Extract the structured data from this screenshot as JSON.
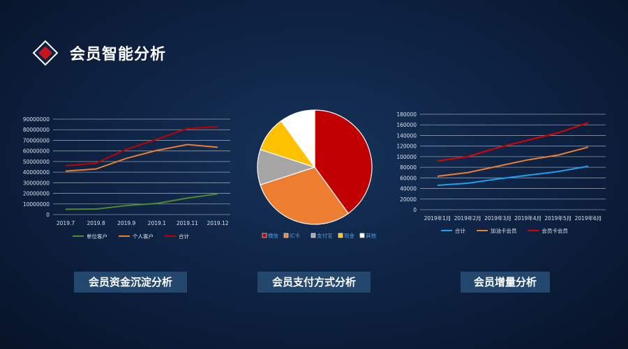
{
  "page": {
    "title": "会员智能分析"
  },
  "captions": {
    "left": "会员资金沉淀分析",
    "middle": "会员支付方式分析",
    "right": "会员增量分析"
  },
  "chart_data": [
    {
      "type": "line",
      "x": [
        "2019.7",
        "2019.8",
        "2019.9",
        "2019.1",
        "2019.11",
        "2019.12"
      ],
      "ylim": [
        0,
        90000000
      ],
      "yticks": [
        "0",
        "10000000",
        "20000000",
        "30000000",
        "40000000",
        "50000000",
        "60000000",
        "70000000",
        "80000000",
        "90000000"
      ],
      "grid": true,
      "legend_position": "bottom",
      "series": [
        {
          "name": "单位客户",
          "color": "#4e8a2e",
          "values": [
            5000000,
            5200000,
            8500000,
            10500000,
            15500000,
            19500000
          ]
        },
        {
          "name": "个人客户",
          "color": "#ed7d31",
          "values": [
            41000000,
            43000000,
            53000000,
            60500000,
            66000000,
            63500000
          ]
        },
        {
          "name": "合计",
          "color": "#c00000",
          "values": [
            46000000,
            48500000,
            61500000,
            71000000,
            81000000,
            83000000
          ]
        }
      ]
    },
    {
      "type": "pie",
      "legend_position": "bottom",
      "slices": [
        {
          "name": "微信",
          "value": 40,
          "color": "#c00000"
        },
        {
          "name": "IC卡",
          "value": 30,
          "color": "#ed7d31"
        },
        {
          "name": "支付宝",
          "value": 10,
          "color": "#a5a5a5"
        },
        {
          "name": "现金",
          "value": 10,
          "color": "#ffc000"
        },
        {
          "name": "其他",
          "value": 10,
          "color": "#ffffff"
        }
      ]
    },
    {
      "type": "line",
      "x": [
        "2019年1月",
        "2019年2月",
        "2019年3月",
        "2019年4月",
        "2019年5月",
        "2019年6月"
      ],
      "ylim": [
        0,
        180000
      ],
      "yticks": [
        "0",
        "20000",
        "40000",
        "60000",
        "80000",
        "100000",
        "120000",
        "140000",
        "160000",
        "180000"
      ],
      "grid": true,
      "legend_position": "bottom",
      "series": [
        {
          "name": "合计",
          "color": "#1ea0f0",
          "values": [
            46000,
            50000,
            58000,
            65000,
            72000,
            82000
          ]
        },
        {
          "name": "加油卡会员",
          "color": "#ed7d31",
          "values": [
            63000,
            70000,
            82000,
            94000,
            103000,
            118000
          ]
        },
        {
          "name": "会员卡会员",
          "color": "#e00000",
          "values": [
            92000,
            100000,
            117000,
            131000,
            145000,
            164000
          ]
        }
      ]
    }
  ]
}
